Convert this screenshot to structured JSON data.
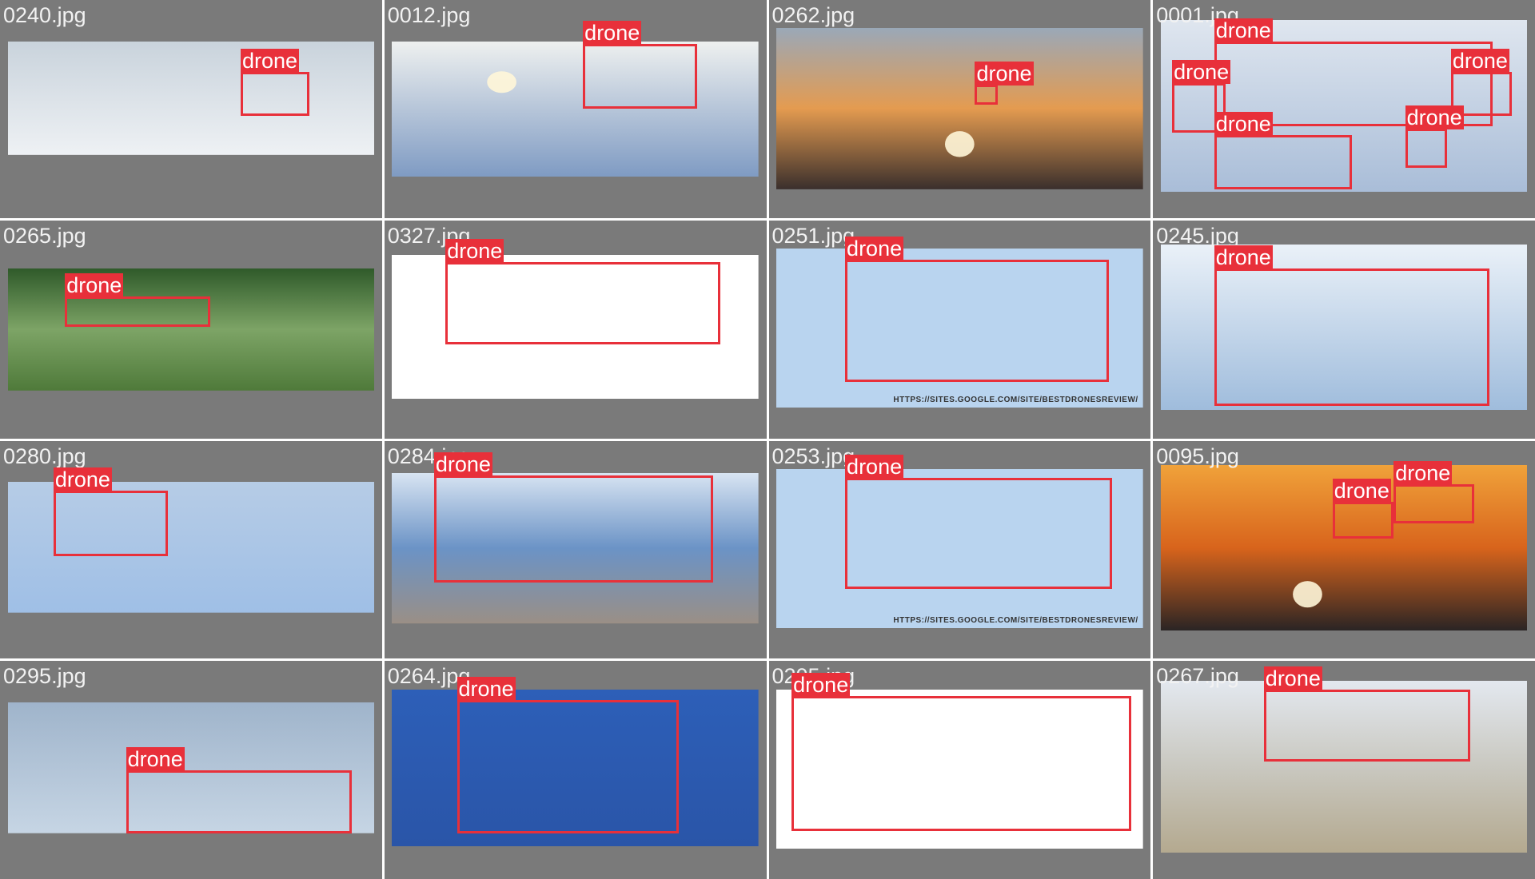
{
  "label": "drone",
  "watermark": "HTTPS://SITES.GOOGLE.COM/SITE/BESTDRONESREVIEW/",
  "tiles": [
    {
      "file": "0240.jpg"
    },
    {
      "file": "0012.jpg"
    },
    {
      "file": "0262.jpg"
    },
    {
      "file": "0001.jpg"
    },
    {
      "file": "0265.jpg"
    },
    {
      "file": "0327.jpg"
    },
    {
      "file": "0251.jpg"
    },
    {
      "file": "0245.jpg"
    },
    {
      "file": "0280.jpg"
    },
    {
      "file": "0284.jpg"
    },
    {
      "file": "0253.jpg"
    },
    {
      "file": "0095.jpg"
    },
    {
      "file": "0295.jpg"
    },
    {
      "file": "0264.jpg"
    },
    {
      "file": "0205.jpg"
    },
    {
      "file": "0267.jpg"
    }
  ]
}
